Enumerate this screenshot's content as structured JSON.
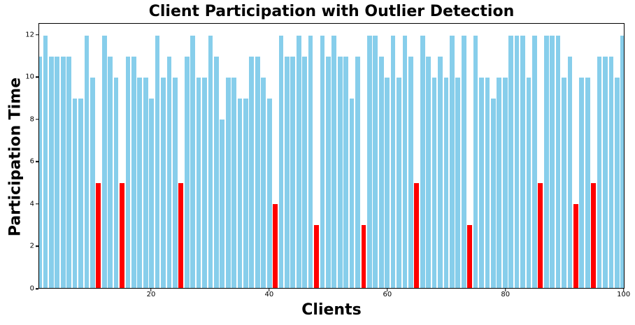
{
  "title": "Client Participation with Outlier Detection",
  "chart_data": {
    "type": "bar",
    "title": "Client Participation with Outlier Detection",
    "xlabel": "Clients",
    "ylabel": "Participation Time",
    "clients_range": [
      1,
      100
    ],
    "values": [
      11,
      12,
      11,
      11,
      11,
      11,
      9,
      9,
      12,
      10,
      5,
      12,
      11,
      10,
      5,
      11,
      11,
      10,
      10,
      9,
      12,
      10,
      11,
      10,
      5,
      11,
      12,
      10,
      10,
      12,
      11,
      8,
      10,
      10,
      9,
      9,
      11,
      11,
      10,
      9,
      4,
      12,
      11,
      11,
      12,
      11,
      12,
      3,
      12,
      11,
      12,
      11,
      11,
      9,
      11,
      3,
      12,
      12,
      11,
      10,
      12,
      10,
      12,
      11,
      5,
      12,
      11,
      10,
      11,
      10,
      12,
      10,
      12,
      3,
      12,
      10,
      10,
      9,
      10,
      10,
      12,
      12,
      12,
      10,
      12,
      5,
      12,
      12,
      12,
      10,
      11,
      4,
      10,
      10,
      5,
      11,
      11,
      11,
      10,
      12
    ],
    "outlier_clients": [
      11,
      15,
      25,
      41,
      48,
      56,
      65,
      74,
      86,
      92,
      95
    ],
    "outlier_values": [
      5,
      5,
      5,
      4,
      3,
      3,
      5,
      3,
      5,
      4,
      5
    ],
    "colors": {
      "normal": "#87CEEB",
      "outlier": "#FF0000",
      "axis": "#000000"
    },
    "xticks": [
      20,
      40,
      60,
      80,
      100
    ],
    "yticks": [
      0,
      2,
      4,
      6,
      8,
      10,
      12
    ],
    "xlim": [
      0.94,
      100.15
    ],
    "ylim": [
      0,
      12.56
    ],
    "bar_width": 0.8,
    "grid": false,
    "legend": null
  }
}
